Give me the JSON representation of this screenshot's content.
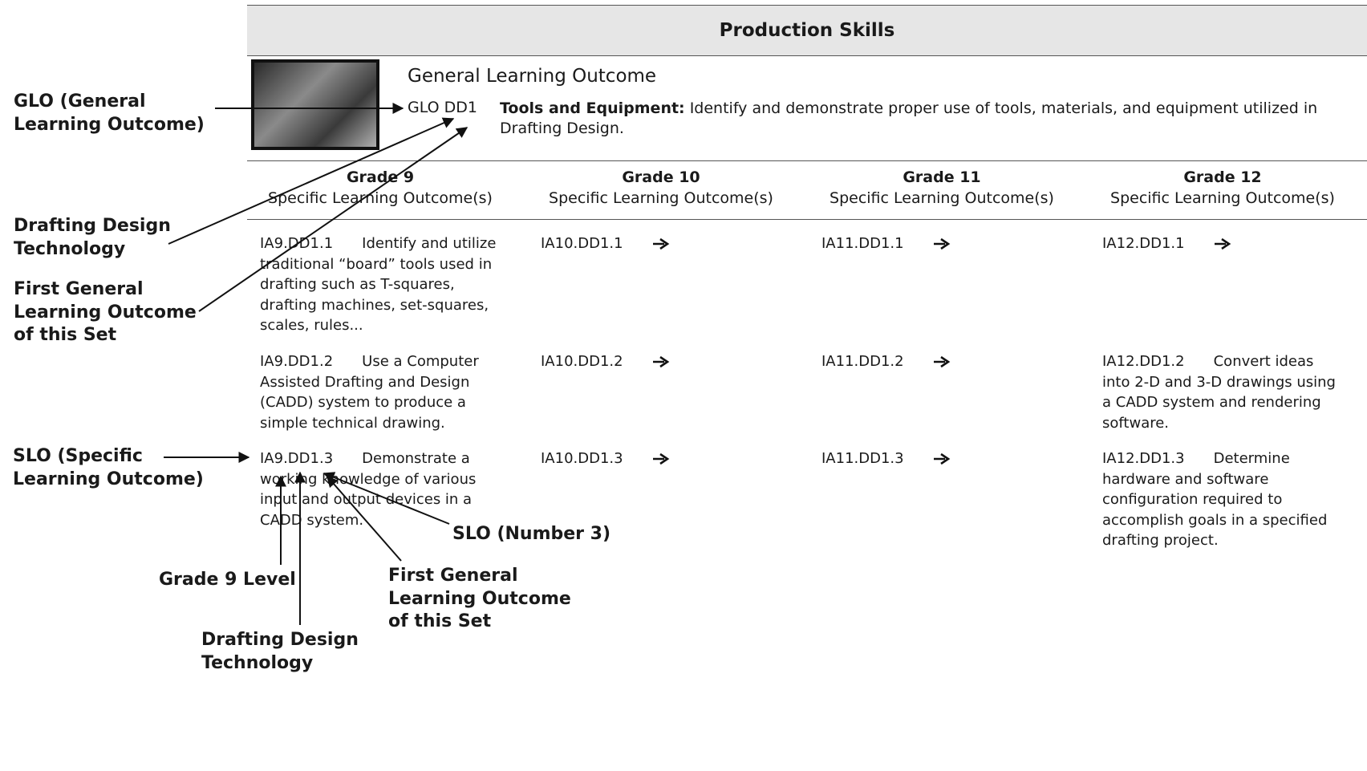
{
  "header": {
    "title": "Production Skills"
  },
  "glo": {
    "heading": "General Learning Outcome",
    "code": "GLO DD1",
    "title": "Tools and Equipment:",
    "text": "Identify and demonstrate proper use of tools, materials, and equipment utilized in Drafting Design."
  },
  "table": {
    "columns": [
      {
        "grade": "Grade 9",
        "subtitle": "Specific Learning Outcome(s)"
      },
      {
        "grade": "Grade 10",
        "subtitle": "Specific Learning Outcome(s)"
      },
      {
        "grade": "Grade 11",
        "subtitle": "Specific Learning Outcome(s)"
      },
      {
        "grade": "Grade 12",
        "subtitle": "Specific Learning Outcome(s)"
      }
    ],
    "rows": [
      [
        {
          "code": "IA9.DD1.1",
          "text": "Identify and utilize traditional “board” tools used in drafting such as T-squares, drafting machines, set-squares, scales, rules..."
        },
        {
          "code": "IA10.DD1.1"
        },
        {
          "code": "IA11.DD1.1"
        },
        {
          "code": "IA12.DD1.1"
        }
      ],
      [
        {
          "code": "IA9.DD1.2",
          "text": "Use a Computer Assisted Drafting and Design (CADD) system to produce a simple technical drawing."
        },
        {
          "code": "IA10.DD1.2"
        },
        {
          "code": "IA11.DD1.2"
        },
        {
          "code": "IA12.DD1.2",
          "text": "Convert ideas into 2-D and 3-D drawings using a CADD system and rendering software."
        }
      ],
      [
        {
          "code": "IA9.DD1.3",
          "text": "Demonstrate a working knowledge of various input and output devices in a CADD system."
        },
        {
          "code": "IA10.DD1.3"
        },
        {
          "code": "IA11.DD1.3"
        },
        {
          "code": "IA12.DD1.3",
          "text": "Determine hardware and software configuration required to accomplish goals in a specified drafting project."
        }
      ]
    ]
  },
  "annotations": [
    {
      "lines": [
        "GLO (General",
        "Learning Outcome)"
      ]
    },
    {
      "lines": [
        "Drafting Design",
        "Technology"
      ]
    },
    {
      "lines": [
        "First General",
        "Learning Outcome",
        "of this Set"
      ]
    },
    {
      "lines": [
        "SLO (Specific",
        "Learning Outcome)"
      ]
    },
    {
      "lines": [
        "SLO (Number 3)"
      ]
    },
    {
      "lines": [
        "Grade 9 Level"
      ]
    },
    {
      "lines": [
        "First General",
        "Learning Outcome",
        "of this Set"
      ]
    },
    {
      "lines": [
        "Drafting Design",
        "Technology"
      ]
    }
  ]
}
